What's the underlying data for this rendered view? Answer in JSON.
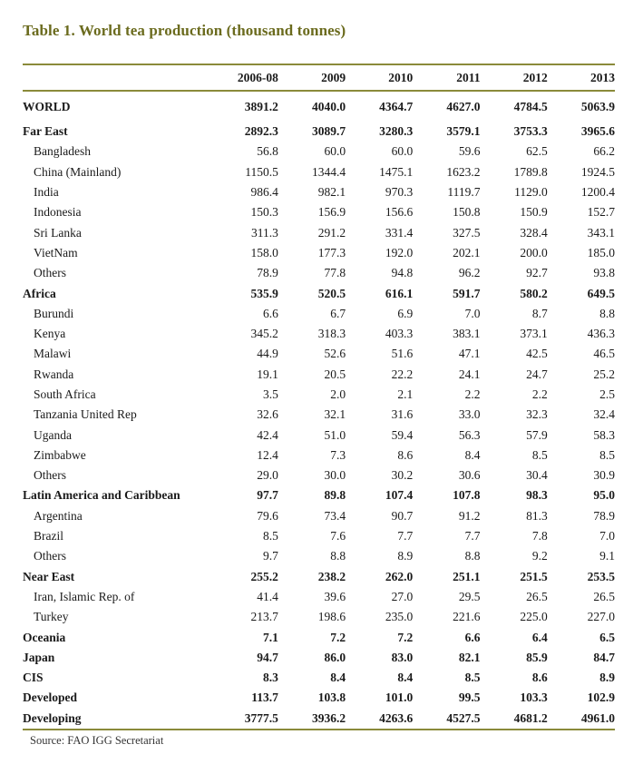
{
  "title": "Table 1. World tea production (thousand tonnes)",
  "columns": [
    "",
    "2006-08",
    "2009",
    "2010",
    "2011",
    "2012",
    "2013"
  ],
  "rows": [
    {
      "label": "WORLD",
      "values": [
        "3891.2",
        "4040.0",
        "4364.7",
        "4627.0",
        "4784.5",
        "5063.9"
      ],
      "style": "world"
    },
    {
      "label": "Far East",
      "values": [
        "2892.3",
        "3089.7",
        "3280.3",
        "3579.1",
        "3753.3",
        "3965.6"
      ],
      "style": "bold"
    },
    {
      "label": "Bangladesh",
      "values": [
        "56.8",
        "60.0",
        "60.0",
        "59.6",
        "62.5",
        "66.2"
      ],
      "style": "indent"
    },
    {
      "label": "China (Mainland)",
      "values": [
        "1150.5",
        "1344.4",
        "1475.1",
        "1623.2",
        "1789.8",
        "1924.5"
      ],
      "style": "indent"
    },
    {
      "label": "India",
      "values": [
        "986.4",
        "982.1",
        "970.3",
        "1119.7",
        "1129.0",
        "1200.4"
      ],
      "style": "indent"
    },
    {
      "label": "Indonesia",
      "values": [
        "150.3",
        "156.9",
        "156.6",
        "150.8",
        "150.9",
        "152.7"
      ],
      "style": "indent"
    },
    {
      "label": "Sri Lanka",
      "values": [
        "311.3",
        "291.2",
        "331.4",
        "327.5",
        "328.4",
        "343.1"
      ],
      "style": "indent"
    },
    {
      "label": "VietNam",
      "values": [
        "158.0",
        "177.3",
        "192.0",
        "202.1",
        "200.0",
        "185.0"
      ],
      "style": "indent"
    },
    {
      "label": "Others",
      "values": [
        "78.9",
        "77.8",
        "94.8",
        "96.2",
        "92.7",
        "93.8"
      ],
      "style": "indent"
    },
    {
      "label": "Africa",
      "values": [
        "535.9",
        "520.5",
        "616.1",
        "591.7",
        "580.2",
        "649.5"
      ],
      "style": "bold"
    },
    {
      "label": "Burundi",
      "values": [
        "6.6",
        "6.7",
        "6.9",
        "7.0",
        "8.7",
        "8.8"
      ],
      "style": "indent"
    },
    {
      "label": "Kenya",
      "values": [
        "345.2",
        "318.3",
        "403.3",
        "383.1",
        "373.1",
        "436.3"
      ],
      "style": "indent"
    },
    {
      "label": "Malawi",
      "values": [
        "44.9",
        "52.6",
        "51.6",
        "47.1",
        "42.5",
        "46.5"
      ],
      "style": "indent"
    },
    {
      "label": "Rwanda",
      "values": [
        "19.1",
        "20.5",
        "22.2",
        "24.1",
        "24.7",
        "25.2"
      ],
      "style": "indent"
    },
    {
      "label": "South Africa",
      "values": [
        "3.5",
        "2.0",
        "2.1",
        "2.2",
        "2.2",
        "2.5"
      ],
      "style": "indent"
    },
    {
      "label": "Tanzania United Rep",
      "values": [
        "32.6",
        "32.1",
        "31.6",
        "33.0",
        "32.3",
        "32.4"
      ],
      "style": "indent"
    },
    {
      "label": "Uganda",
      "values": [
        "42.4",
        "51.0",
        "59.4",
        "56.3",
        "57.9",
        "58.3"
      ],
      "style": "indent"
    },
    {
      "label": "Zimbabwe",
      "values": [
        "12.4",
        "7.3",
        "8.6",
        "8.4",
        "8.5",
        "8.5"
      ],
      "style": "indent"
    },
    {
      "label": "Others",
      "values": [
        "29.0",
        "30.0",
        "30.2",
        "30.6",
        "30.4",
        "30.9"
      ],
      "style": "indent"
    },
    {
      "label": "Latin America and Caribbean",
      "values": [
        "97.7",
        "89.8",
        "107.4",
        "107.8",
        "98.3",
        "95.0"
      ],
      "style": "bold"
    },
    {
      "label": "Argentina",
      "values": [
        "79.6",
        "73.4",
        "90.7",
        "91.2",
        "81.3",
        "78.9"
      ],
      "style": "indent"
    },
    {
      "label": "Brazil",
      "values": [
        "8.5",
        "7.6",
        "7.7",
        "7.7",
        "7.8",
        "7.0"
      ],
      "style": "indent"
    },
    {
      "label": "Others",
      "values": [
        "9.7",
        "8.8",
        "8.9",
        "8.8",
        "9.2",
        "9.1"
      ],
      "style": "indent"
    },
    {
      "label": "Near East",
      "values": [
        "255.2",
        "238.2",
        "262.0",
        "251.1",
        "251.5",
        "253.5"
      ],
      "style": "bold"
    },
    {
      "label": "Iran, Islamic Rep. of",
      "values": [
        "41.4",
        "39.6",
        "27.0",
        "29.5",
        "26.5",
        "26.5"
      ],
      "style": "indent"
    },
    {
      "label": "Turkey",
      "values": [
        "213.7",
        "198.6",
        "235.0",
        "221.6",
        "225.0",
        "227.0"
      ],
      "style": "indent"
    },
    {
      "label": "Oceania",
      "values": [
        "7.1",
        "7.2",
        "7.2",
        "6.6",
        "6.4",
        "6.5"
      ],
      "style": "bold"
    },
    {
      "label": "Japan",
      "values": [
        "94.7",
        "86.0",
        "83.0",
        "82.1",
        "85.9",
        "84.7"
      ],
      "style": "bold"
    },
    {
      "label": "CIS",
      "values": [
        "8.3",
        "8.4",
        "8.4",
        "8.5",
        "8.6",
        "8.9"
      ],
      "style": "bold"
    },
    {
      "label": "Developed",
      "values": [
        "113.7",
        "103.8",
        "101.0",
        "99.5",
        "103.3",
        "102.9"
      ],
      "style": "bold"
    },
    {
      "label": "Developing",
      "values": [
        "3777.5",
        "3936.2",
        "4263.6",
        "4527.5",
        "4681.2",
        "4961.0"
      ],
      "style": "bold"
    }
  ],
  "source": "Source: FAO IGG Secretariat",
  "colors": {
    "title": "#6b6b1e",
    "rule": "#8a8a3a"
  }
}
